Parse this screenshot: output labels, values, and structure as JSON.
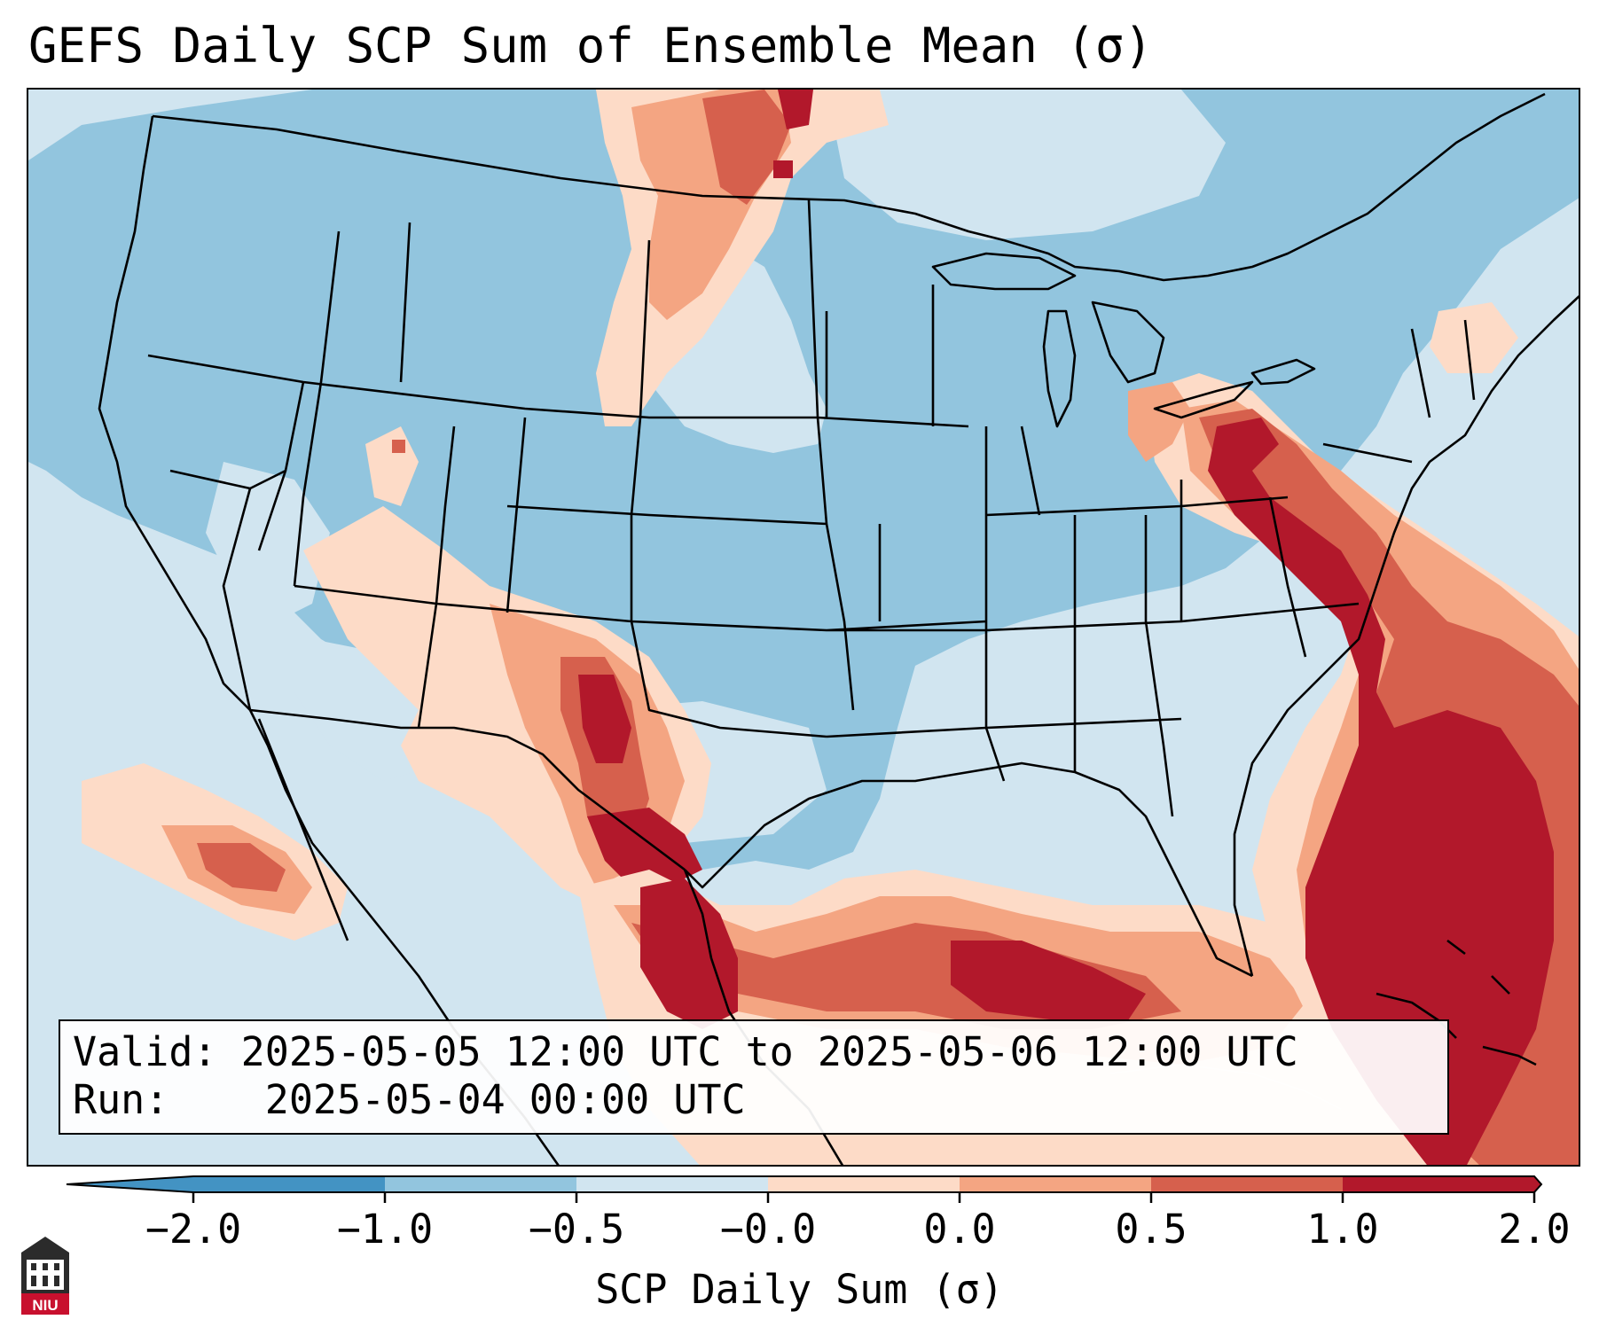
{
  "title": "GEFS Daily SCP Sum of Ensemble Mean (σ)",
  "info": {
    "valid_label": "Valid:",
    "valid_value": "2025-05-05 12:00 UTC to 2025-05-06 12:00 UTC",
    "run_label": "Run:",
    "run_value": "2025-05-04 00:00 UTC"
  },
  "colorbar": {
    "label": "SCP Daily Sum (σ)",
    "ticks": [
      "−2.0",
      "−1.0",
      "−0.5",
      "−0.0",
      "0.0",
      "0.5",
      "1.0",
      "2.0"
    ],
    "colors": [
      "#4393c3",
      "#92c5de",
      "#d1e5f0",
      "#fddbc7",
      "#f4a582",
      "#d6604d",
      "#b2182b"
    ],
    "extend": "both"
  },
  "logo": {
    "text": "NIU",
    "name": "niu-logo"
  },
  "map_colors": {
    "neg_strong": "#4393c3",
    "neg_medium": "#92c5de",
    "neg_weak": "#d1e5f0",
    "pos_weak": "#fddbc7",
    "pos_medium": "#f4a582",
    "pos_strong": "#d6604d",
    "pos_extreme": "#b2182b"
  }
}
